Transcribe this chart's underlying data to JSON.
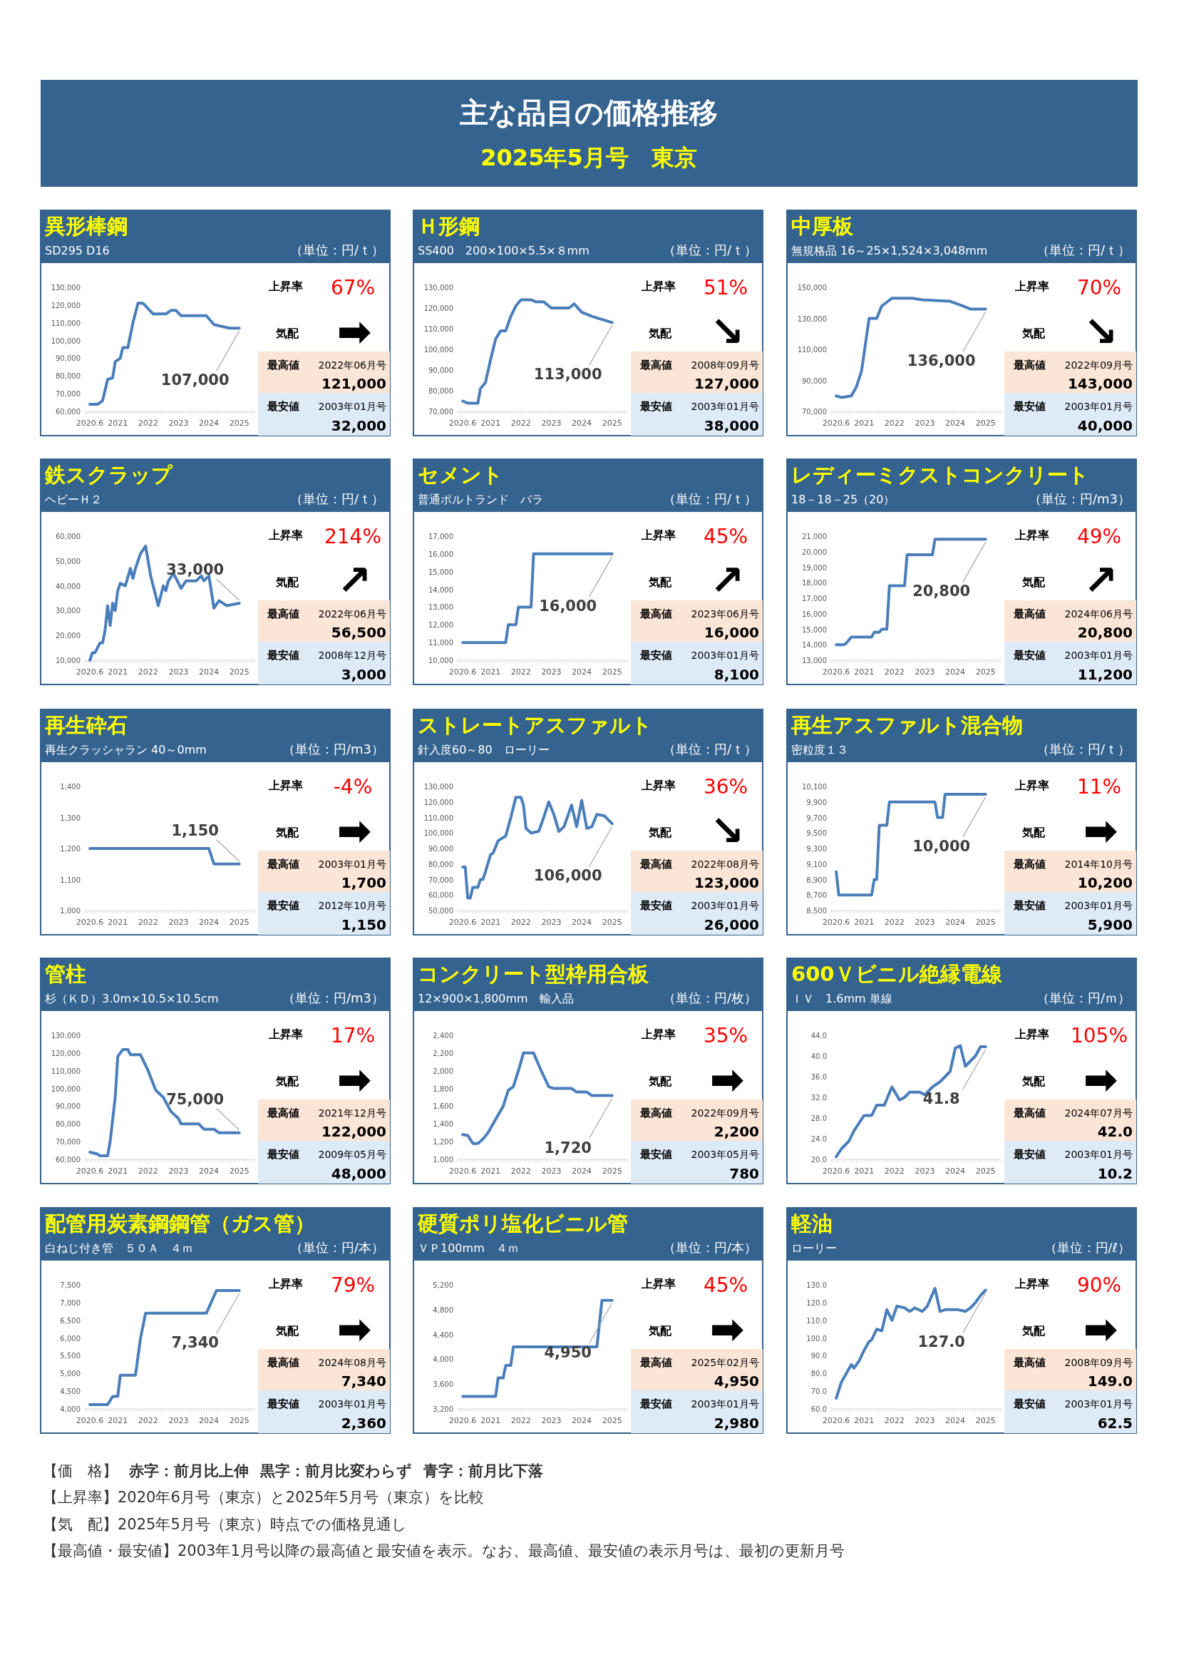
{
  "chart_data": [
    {
      "type": "other",
      "title": "主な品目の価格推移",
      "subtitle": "2025年5月号　東京"
    },
    {
      "type": "line",
      "title": "異形棒鋼",
      "subtitle": "SD295 D16",
      "ylabel": "（単位：円/ｔ）",
      "xlim": [
        "2020-04",
        "2025-11"
      ],
      "xticks": [
        {
          "value": "2020-06",
          "label": "2020.6"
        },
        {
          "value": "2021-05",
          "label": "2021"
        },
        {
          "value": "2022-05",
          "label": "2022"
        },
        {
          "value": "2023-05",
          "label": "2023"
        },
        {
          "value": "2024-05",
          "label": "2024"
        },
        {
          "value": "2025-05",
          "label": "2025"
        }
      ],
      "ylim": [
        60000,
        130000
      ],
      "yticks": [
        {
          "value": 60000,
          "label": "60,000"
        },
        {
          "value": 70000,
          "label": "70,000"
        },
        {
          "value": 80000,
          "label": "80,000"
        },
        {
          "value": 90000,
          "label": "90,000"
        },
        {
          "value": 100000,
          "label": "100,000"
        },
        {
          "value": 110000,
          "label": "110,000"
        },
        {
          "value": 120000,
          "label": "120,000"
        },
        {
          "value": 130000,
          "label": "130,000"
        }
      ],
      "series": [
        {
          "color": "#4a7ebb",
          "x": [
            "2020-06",
            "2020-09",
            "2020-11",
            "2021-01",
            "2021-03",
            "2021-04",
            "2021-06",
            "2021-07",
            "2021-09",
            "2021-11",
            "2022-01",
            "2022-03",
            "2022-05",
            "2022-07",
            "2022-09",
            "2022-12",
            "2023-02",
            "2023-04",
            "2023-06",
            "2024-04",
            "2024-07",
            "2024-10",
            "2025-01",
            "2025-05"
          ],
          "values": [
            64000,
            64000,
            66000,
            78000,
            79000,
            88000,
            90000,
            96000,
            96000,
            110000,
            121000,
            121000,
            118000,
            115000,
            115000,
            115000,
            117000,
            117000,
            114000,
            114000,
            109000,
            108000,
            107000,
            107000
          ]
        }
      ],
      "annotations": [
        {
          "text": "107,000",
          "x": "2025-05",
          "y": 107000
        },
        "上昇率",
        "67%",
        "気配",
        "➡",
        "最高値",
        "2022年06月号",
        "121,000",
        "最安値",
        "2003年01月号",
        "32,000"
      ]
    },
    {
      "type": "line",
      "title": "Ｈ形鋼",
      "subtitle": "SS400　200×100×5.5×８mm",
      "ylabel": "（単位：円/ｔ）",
      "xlim": [
        "2020-04",
        "2025-11"
      ],
      "xticks": [
        {
          "value": "2020-06",
          "label": "2020.6"
        },
        {
          "value": "2021-05",
          "label": "2021"
        },
        {
          "value": "2022-05",
          "label": "2022"
        },
        {
          "value": "2023-05",
          "label": "2023"
        },
        {
          "value": "2024-05",
          "label": "2024"
        },
        {
          "value": "2025-05",
          "label": "2025"
        }
      ],
      "ylim": [
        70000,
        130000
      ],
      "yticks": [
        {
          "value": 70000,
          "label": "70,000"
        },
        {
          "value": 80000,
          "label": "80,000"
        },
        {
          "value": 90000,
          "label": "90,000"
        },
        {
          "value": 100000,
          "label": "100,000"
        },
        {
          "value": 110000,
          "label": "110,000"
        },
        {
          "value": 120000,
          "label": "120,000"
        },
        {
          "value": 130000,
          "label": "130,000"
        }
      ],
      "series": [
        {
          "color": "#4a7ebb",
          "x": [
            "2020-06",
            "2020-08",
            "2020-12",
            "2021-01",
            "2021-03",
            "2021-05",
            "2021-07",
            "2021-09",
            "2021-11",
            "2022-01",
            "2022-03",
            "2022-05",
            "2022-09",
            "2022-11",
            "2023-02",
            "2023-05",
            "2023-12",
            "2024-02",
            "2024-05",
            "2024-09",
            "2025-05"
          ],
          "values": [
            75000,
            74000,
            74000,
            81000,
            84000,
            95000,
            105000,
            109000,
            109000,
            116000,
            121000,
            124000,
            124000,
            123000,
            123000,
            120000,
            120000,
            122000,
            118000,
            116000,
            113000
          ]
        }
      ],
      "annotations": [
        {
          "text": "113,000",
          "x": "2025-05",
          "y": 113000
        },
        "上昇率",
        "51%",
        "気配",
        "↘",
        "最高値",
        "2008年09月号",
        "127,000",
        "最安値",
        "2003年01月号",
        "38,000"
      ]
    },
    {
      "type": "line",
      "title": "中厚板",
      "subtitle": "無規格品 16～25×1,524×3,048mm",
      "ylabel": "（単位：円/ｔ）",
      "xlim": [
        "2020-04",
        "2025-11"
      ],
      "xticks": [
        {
          "value": "2020-06",
          "label": "2020.6"
        },
        {
          "value": "2021-05",
          "label": "2021"
        },
        {
          "value": "2022-05",
          "label": "2022"
        },
        {
          "value": "2023-05",
          "label": "2023"
        },
        {
          "value": "2024-05",
          "label": "2024"
        },
        {
          "value": "2025-05",
          "label": "2025"
        }
      ],
      "ylim": [
        70000,
        150000
      ],
      "yticks": [
        {
          "value": 70000,
          "label": "70,000"
        },
        {
          "value": 90000,
          "label": "90,000"
        },
        {
          "value": 110000,
          "label": "110,000"
        },
        {
          "value": 130000,
          "label": "130,000"
        },
        {
          "value": 150000,
          "label": "150,000"
        }
      ],
      "series": [
        {
          "color": "#4a7ebb",
          "x": [
            "2020-06",
            "2020-08",
            "2020-12",
            "2021-02",
            "2021-04",
            "2021-07",
            "2021-10",
            "2021-12",
            "2022-04",
            "2022-12",
            "2023-04",
            "2024-03",
            "2024-08",
            "2024-11",
            "2025-05"
          ],
          "values": [
            80000,
            79000,
            80000,
            86000,
            96000,
            130000,
            130000,
            138000,
            143000,
            143000,
            142000,
            141000,
            138000,
            136000,
            136000
          ]
        }
      ],
      "annotations": [
        {
          "text": "136,000",
          "x": "2025-05",
          "y": 136000
        },
        "上昇率",
        "70%",
        "気配",
        "↘",
        "最高値",
        "2022年09月号",
        "143,000",
        "最安値",
        "2003年01月号",
        "40,000"
      ]
    },
    {
      "type": "line",
      "title": "鉄スクラップ",
      "subtitle": "ヘビーＨ２",
      "ylabel": "（単位：円/ｔ）",
      "xlim": [
        "2020-04",
        "2025-11"
      ],
      "xticks": [
        {
          "value": "2020-06",
          "label": "2020.6"
        },
        {
          "value": "2021-05",
          "label": "2021"
        },
        {
          "value": "2022-05",
          "label": "2022"
        },
        {
          "value": "2023-05",
          "label": "2023"
        },
        {
          "value": "2024-05",
          "label": "2024"
        },
        {
          "value": "2025-05",
          "label": "2025"
        }
      ],
      "ylim": [
        10000,
        60000
      ],
      "yticks": [
        {
          "value": 10000,
          "label": "10,000"
        },
        {
          "value": 20000,
          "label": "20,000"
        },
        {
          "value": 30000,
          "label": "30,000"
        },
        {
          "value": 40000,
          "label": "40,000"
        },
        {
          "value": 50000,
          "label": "50,000"
        },
        {
          "value": 60000,
          "label": "60,000"
        }
      ],
      "series": [
        {
          "color": "#4a7ebb",
          "x": [
            "2020-06",
            "2020-07",
            "2020-08",
            "2020-10",
            "2020-11",
            "2020-12",
            "2021-01",
            "2021-02",
            "2021-03",
            "2021-04",
            "2021-05",
            "2021-06",
            "2021-08",
            "2021-10",
            "2021-11",
            "2021-12",
            "2022-02",
            "2022-04",
            "2022-06",
            "2022-09",
            "2022-11",
            "2022-12",
            "2023-01",
            "2023-03",
            "2023-06",
            "2023-08",
            "2023-12",
            "2024-02",
            "2024-03",
            "2024-05",
            "2024-07",
            "2024-09",
            "2024-12",
            "2025-05"
          ],
          "values": [
            10000,
            13000,
            13000,
            17000,
            17000,
            22000,
            32000,
            24000,
            33000,
            30000,
            38000,
            41000,
            40000,
            47000,
            43000,
            47000,
            53000,
            56000,
            44000,
            32000,
            40000,
            38000,
            42000,
            45000,
            39000,
            42000,
            42000,
            44000,
            42000,
            44000,
            31000,
            34000,
            32000,
            33000
          ]
        }
      ],
      "annotations": [
        {
          "text": "33,000",
          "x": "2025-05",
          "y": 33000
        },
        "上昇率",
        "214%",
        "気配",
        "↗",
        "最高値",
        "2022年06月号",
        "56,500",
        "最安値",
        "2008年12月号",
        "3,000"
      ]
    },
    {
      "type": "line",
      "title": "セメント",
      "subtitle": "普通ポルトランド　バラ",
      "ylabel": "（単位：円/ｔ）",
      "xlim": [
        "2020-04",
        "2025-11"
      ],
      "xticks": [
        {
          "value": "2020-06",
          "label": "2020.6"
        },
        {
          "value": "2021-05",
          "label": "2021"
        },
        {
          "value": "2022-05",
          "label": "2022"
        },
        {
          "value": "2023-05",
          "label": "2023"
        },
        {
          "value": "2024-05",
          "label": "2024"
        },
        {
          "value": "2025-05",
          "label": "2025"
        }
      ],
      "ylim": [
        10000,
        17000
      ],
      "yticks": [
        {
          "value": 10000,
          "label": "10,000"
        },
        {
          "value": 11000,
          "label": "11,000"
        },
        {
          "value": 12000,
          "label": "12,000"
        },
        {
          "value": 13000,
          "label": "13,000"
        },
        {
          "value": 14000,
          "label": "14,000"
        },
        {
          "value": 15000,
          "label": "15,000"
        },
        {
          "value": 16000,
          "label": "16,000"
        },
        {
          "value": 17000,
          "label": "17,000"
        }
      ],
      "series": [
        {
          "color": "#4a7ebb",
          "x": [
            "2020-06",
            "2021-11",
            "2021-12",
            "2022-03",
            "2022-04",
            "2022-09",
            "2022-10",
            "2025-05"
          ],
          "values": [
            11000,
            11000,
            12000,
            12000,
            13000,
            13000,
            16000,
            16000
          ]
        }
      ],
      "annotations": [
        {
          "text": "16,000",
          "x": "2025-05",
          "y": 16000
        },
        "上昇率",
        "45%",
        "気配",
        "↗",
        "最高値",
        "2023年06月号",
        "16,000",
        "最安値",
        "2003年01月号",
        "8,100"
      ]
    },
    {
      "type": "line",
      "title": "レディーミクストコンクリート",
      "subtitle": "18－18－25（20）",
      "ylabel": "（単位：円/m3）",
      "xlim": [
        "2020-04",
        "2025-11"
      ],
      "xticks": [
        {
          "value": "2020-06",
          "label": "2020.6"
        },
        {
          "value": "2021-05",
          "label": "2021"
        },
        {
          "value": "2022-05",
          "label": "2022"
        },
        {
          "value": "2023-05",
          "label": "2023"
        },
        {
          "value": "2024-05",
          "label": "2024"
        },
        {
          "value": "2025-05",
          "label": "2025"
        }
      ],
      "ylim": [
        13000,
        21000
      ],
      "yticks": [
        {
          "value": 13000,
          "label": "13,000"
        },
        {
          "value": 14000,
          "label": "14,000"
        },
        {
          "value": 15000,
          "label": "15,000"
        },
        {
          "value": 16000,
          "label": "16,000"
        },
        {
          "value": 17000,
          "label": "17,000"
        },
        {
          "value": 18000,
          "label": "18,000"
        },
        {
          "value": 19000,
          "label": "19,000"
        },
        {
          "value": 20000,
          "label": "20,000"
        },
        {
          "value": 21000,
          "label": "21,000"
        }
      ],
      "series": [
        {
          "color": "#4a7ebb",
          "x": [
            "2020-06",
            "2020-09",
            "2020-10",
            "2020-12",
            "2021-08",
            "2021-09",
            "2021-11",
            "2021-12",
            "2022-02",
            "2022-03",
            "2022-09",
            "2022-10",
            "2023-08",
            "2023-09",
            "2025-05"
          ],
          "values": [
            14000,
            14000,
            14100,
            14500,
            14500,
            14800,
            14800,
            15000,
            15000,
            17800,
            17800,
            19800,
            19800,
            20800,
            20800
          ]
        }
      ],
      "annotations": [
        {
          "text": "20,800",
          "x": "2025-05",
          "y": 20800
        },
        "上昇率",
        "49%",
        "気配",
        "↗",
        "最高値",
        "2024年06月号",
        "20,800",
        "最安値",
        "2003年01月号",
        "11,200"
      ]
    },
    {
      "type": "line",
      "title": "再生砕石",
      "subtitle": "再生クラッシャラン 40～0mm",
      "ylabel": "（単位：円/m3）",
      "xlim": [
        "2020-04",
        "2025-11"
      ],
      "xticks": [
        {
          "value": "2020-06",
          "label": "2020.6"
        },
        {
          "value": "2021-05",
          "label": "2021"
        },
        {
          "value": "2022-05",
          "label": "2022"
        },
        {
          "value": "2023-05",
          "label": "2023"
        },
        {
          "value": "2024-05",
          "label": "2024"
        },
        {
          "value": "2025-05",
          "label": "2025"
        }
      ],
      "ylim": [
        1000,
        1400
      ],
      "yticks": [
        {
          "value": 1000,
          "label": "1,000"
        },
        {
          "value": 1100,
          "label": "1,100"
        },
        {
          "value": 1200,
          "label": "1,200"
        },
        {
          "value": 1300,
          "label": "1,300"
        },
        {
          "value": 1400,
          "label": "1,400"
        }
      ],
      "series": [
        {
          "color": "#4a7ebb",
          "x": [
            "2020-06",
            "2024-05",
            "2024-07",
            "2025-05"
          ],
          "values": [
            1200,
            1200,
            1150,
            1150
          ]
        }
      ],
      "annotations": [
        {
          "text": "1,150",
          "x": "2025-05",
          "y": 1150
        },
        "上昇率",
        "-4%",
        "気配",
        "➡",
        "最高値",
        "2003年01月号",
        "1,700",
        "最安値",
        "2012年10月号",
        "1,150"
      ]
    },
    {
      "type": "line",
      "title": "ストレートアスファルト",
      "subtitle": "針入度60～80　ローリー",
      "ylabel": "（単位：円/ｔ）",
      "xlim": [
        "2020-04",
        "2025-11"
      ],
      "xticks": [
        {
          "value": "2020-06",
          "label": "2020.6"
        },
        {
          "value": "2021-05",
          "label": "2021"
        },
        {
          "value": "2022-05",
          "label": "2022"
        },
        {
          "value": "2023-05",
          "label": "2023"
        },
        {
          "value": "2024-05",
          "label": "2024"
        },
        {
          "value": "2025-05",
          "label": "2025"
        }
      ],
      "ylim": [
        50000,
        130000
      ],
      "yticks": [
        {
          "value": 50000,
          "label": "50,000"
        },
        {
          "value": 60000,
          "label": "60,000"
        },
        {
          "value": 70000,
          "label": "70,000"
        },
        {
          "value": 80000,
          "label": "80,000"
        },
        {
          "value": 90000,
          "label": "90,000"
        },
        {
          "value": 100000,
          "label": "100,000"
        },
        {
          "value": 110000,
          "label": "110,000"
        },
        {
          "value": 120000,
          "label": "120,000"
        },
        {
          "value": 130000,
          "label": "130,000"
        }
      ],
      "series": [
        {
          "color": "#4a7ebb",
          "x": [
            "2020-06",
            "2020-07",
            "2020-08",
            "2020-09",
            "2020-10",
            "2020-12",
            "2021-01",
            "2021-02",
            "2021-03",
            "2021-05",
            "2021-06",
            "2021-08",
            "2021-10",
            "2021-11",
            "2022-01",
            "2022-03",
            "2022-05",
            "2022-06",
            "2022-07",
            "2022-09",
            "2022-12",
            "2023-02",
            "2023-04",
            "2023-06",
            "2023-08",
            "2023-10",
            "2024-01",
            "2024-03",
            "2024-05",
            "2024-07",
            "2024-09",
            "2024-11",
            "2025-02",
            "2025-05"
          ],
          "values": [
            78000,
            78000,
            58000,
            58000,
            65000,
            65000,
            70000,
            70000,
            75000,
            86000,
            87000,
            95000,
            97000,
            98000,
            110000,
            123000,
            123000,
            118000,
            103000,
            100000,
            101000,
            110000,
            120000,
            112000,
            101000,
            104000,
            118000,
            104000,
            121000,
            103000,
            104000,
            112000,
            111000,
            106000
          ]
        }
      ],
      "annotations": [
        {
          "text": "106,000",
          "x": "2025-05",
          "y": 106000
        },
        "上昇率",
        "36%",
        "気配",
        "↘",
        "最高値",
        "2022年08月号",
        "123,000",
        "最安値",
        "2003年01月号",
        "26,000"
      ]
    },
    {
      "type": "line",
      "title": "再生アスファルト混合物",
      "subtitle": "密粒度１３",
      "ylabel": "（単位：円/ｔ）",
      "xlim": [
        "2020-04",
        "2025-11"
      ],
      "xticks": [
        {
          "value": "2020-06",
          "label": "2020.6"
        },
        {
          "value": "2021-05",
          "label": "2021"
        },
        {
          "value": "2022-05",
          "label": "2022"
        },
        {
          "value": "2023-05",
          "label": "2023"
        },
        {
          "value": "2024-05",
          "label": "2024"
        },
        {
          "value": "2025-05",
          "label": "2025"
        }
      ],
      "ylim": [
        8500,
        10100
      ],
      "yticks": [
        {
          "value": 8500,
          "label": "8,500"
        },
        {
          "value": 8700,
          "label": "8,700"
        },
        {
          "value": 8900,
          "label": "8,900"
        },
        {
          "value": 9100,
          "label": "9,100"
        },
        {
          "value": 9300,
          "label": "9,300"
        },
        {
          "value": 9500,
          "label": "9,500"
        },
        {
          "value": 9700,
          "label": "9,700"
        },
        {
          "value": 9900,
          "label": "9,900"
        },
        {
          "value": 10100,
          "label": "10,100"
        }
      ],
      "series": [
        {
          "color": "#4a7ebb",
          "x": [
            "2020-06",
            "2020-07",
            "2021-08",
            "2021-09",
            "2021-10",
            "2021-11",
            "2022-02",
            "2022-03",
            "2023-09",
            "2023-10",
            "2023-12",
            "2024-01",
            "2025-05"
          ],
          "values": [
            9000,
            8700,
            8700,
            8900,
            8900,
            9600,
            9600,
            9900,
            9900,
            9700,
            9700,
            10000,
            10000
          ]
        }
      ],
      "annotations": [
        {
          "text": "10,000",
          "x": "2025-05",
          "y": 10000
        },
        "上昇率",
        "11%",
        "気配",
        "➡",
        "最高値",
        "2014年10月号",
        "10,200",
        "最安値",
        "2003年01月号",
        "5,900"
      ]
    },
    {
      "type": "line",
      "title": "管柱",
      "subtitle": "杉（ＫＤ）3.0m×10.5×10.5cm",
      "ylabel": "（単位：円/m3）",
      "xlim": [
        "2020-04",
        "2025-11"
      ],
      "xticks": [
        {
          "value": "2020-06",
          "label": "2020.6"
        },
        {
          "value": "2021-05",
          "label": "2021"
        },
        {
          "value": "2022-05",
          "label": "2022"
        },
        {
          "value": "2023-05",
          "label": "2023"
        },
        {
          "value": "2024-05",
          "label": "2024"
        },
        {
          "value": "2025-05",
          "label": "2025"
        }
      ],
      "ylim": [
        60000,
        130000
      ],
      "yticks": [
        {
          "value": 60000,
          "label": "60,000"
        },
        {
          "value": 70000,
          "label": "70,000"
        },
        {
          "value": 80000,
          "label": "80,000"
        },
        {
          "value": 90000,
          "label": "90,000"
        },
        {
          "value": 100000,
          "label": "100,000"
        },
        {
          "value": 110000,
          "label": "110,000"
        },
        {
          "value": 120000,
          "label": "120,000"
        },
        {
          "value": 130000,
          "label": "130,000"
        }
      ],
      "series": [
        {
          "color": "#4a7ebb",
          "x": [
            "2020-06",
            "2020-09",
            "2020-10",
            "2021-01",
            "2021-02",
            "2021-04",
            "2021-05",
            "2021-07",
            "2021-09",
            "2021-10",
            "2022-02",
            "2022-05",
            "2022-08",
            "2022-11",
            "2023-02",
            "2023-05",
            "2023-06",
            "2024-01",
            "2024-03",
            "2024-07",
            "2024-09",
            "2025-05"
          ],
          "values": [
            64000,
            63000,
            62000,
            62000,
            70000,
            95000,
            118000,
            122000,
            122000,
            119000,
            119000,
            110000,
            99000,
            95000,
            87000,
            83000,
            80000,
            80000,
            77000,
            77000,
            75000,
            75000
          ]
        }
      ],
      "annotations": [
        {
          "text": "75,000",
          "x": "2025-05",
          "y": 75000
        },
        "上昇率",
        "17%",
        "気配",
        "➡",
        "最高値",
        "2021年12月号",
        "122,000",
        "最安値",
        "2009年05月号",
        "48,000"
      ]
    },
    {
      "type": "line",
      "title": "コンクリート型枠用合板",
      "subtitle": "12×900×1,800mm　輸入品",
      "ylabel": "（単位：円/枚）",
      "xlim": [
        "2020-04",
        "2025-11"
      ],
      "xticks": [
        {
          "value": "2020-06",
          "label": "2020.6"
        },
        {
          "value": "2021-05",
          "label": "2021"
        },
        {
          "value": "2022-05",
          "label": "2022"
        },
        {
          "value": "2023-05",
          "label": "2023"
        },
        {
          "value": "2024-05",
          "label": "2024"
        },
        {
          "value": "2025-05",
          "label": "2025"
        }
      ],
      "ylim": [
        1000,
        2400
      ],
      "yticks": [
        {
          "value": 1000,
          "label": "1,000"
        },
        {
          "value": 1200,
          "label": "1,200"
        },
        {
          "value": 1400,
          "label": "1,400"
        },
        {
          "value": 1600,
          "label": "1,600"
        },
        {
          "value": 1800,
          "label": "1,800"
        },
        {
          "value": 2000,
          "label": "2,000"
        },
        {
          "value": 2200,
          "label": "2,200"
        },
        {
          "value": 2400,
          "label": "2,400"
        }
      ],
      "series": [
        {
          "color": "#4a7ebb",
          "x": [
            "2020-06",
            "2020-08",
            "2020-10",
            "2020-12",
            "2021-02",
            "2021-04",
            "2021-07",
            "2021-10",
            "2021-12",
            "2022-02",
            "2022-04",
            "2022-06",
            "2022-10",
            "2023-01",
            "2023-04",
            "2023-06",
            "2024-01",
            "2024-03",
            "2024-07",
            "2024-09",
            "2025-05"
          ],
          "values": [
            1280,
            1270,
            1180,
            1180,
            1230,
            1300,
            1450,
            1600,
            1780,
            1820,
            2000,
            2200,
            2200,
            2000,
            1820,
            1800,
            1800,
            1760,
            1760,
            1720,
            1720
          ]
        }
      ],
      "annotations": [
        {
          "text": "1,720",
          "x": "2025-05",
          "y": 1720
        },
        "上昇率",
        "35%",
        "気配",
        "➡",
        "最高値",
        "2022年09月号",
        "2,200",
        "最安値",
        "2003年05月号",
        "780"
      ]
    },
    {
      "type": "line",
      "title": "600Ｖビニル絶縁電線",
      "subtitle": "ＩＶ　1.6mm 単線",
      "ylabel": "（単位：円/ｍ）",
      "xlim": [
        "2020-04",
        "2025-11"
      ],
      "xticks": [
        {
          "value": "2020-06",
          "label": "2020.6"
        },
        {
          "value": "2021-05",
          "label": "2021"
        },
        {
          "value": "2022-05",
          "label": "2022"
        },
        {
          "value": "2023-05",
          "label": "2023"
        },
        {
          "value": "2024-05",
          "label": "2024"
        },
        {
          "value": "2025-05",
          "label": "2025"
        }
      ],
      "ylim": [
        20,
        44
      ],
      "yticks": [
        {
          "value": 20,
          "label": "20.0"
        },
        {
          "value": 24,
          "label": "24.0"
        },
        {
          "value": 28,
          "label": "28.0"
        },
        {
          "value": 32,
          "label": "32.0"
        },
        {
          "value": 36,
          "label": "36.0"
        },
        {
          "value": 40,
          "label": "40.0"
        },
        {
          "value": 44,
          "label": "44.0"
        }
      ],
      "series": [
        {
          "color": "#4a7ebb",
          "x": [
            "2020-06",
            "2020-08",
            "2020-11",
            "2021-01",
            "2021-03",
            "2021-05",
            "2021-08",
            "2021-10",
            "2022-01",
            "2022-04",
            "2022-07",
            "2022-09",
            "2022-11",
            "2023-03",
            "2023-05",
            "2023-08",
            "2023-11",
            "2024-03",
            "2024-05",
            "2024-07",
            "2024-09",
            "2024-11",
            "2025-01",
            "2025-03",
            "2025-05"
          ],
          "values": [
            20.5,
            22,
            23.5,
            25.5,
            27,
            28.5,
            28.5,
            30.5,
            30.5,
            34,
            31.5,
            32,
            33,
            33,
            32.5,
            34,
            35,
            37,
            41.5,
            42,
            38,
            39,
            40,
            41.8,
            41.8
          ]
        }
      ],
      "annotations": [
        {
          "text": "41.8",
          "x": "2025-05",
          "y": 41.8
        },
        "上昇率",
        "105%",
        "気配",
        "➡",
        "最高値",
        "2024年07月号",
        "42.0",
        "最安値",
        "2003年01月号",
        "10.2"
      ]
    },
    {
      "type": "line",
      "title": "配管用炭素鋼鋼管（ガス管）",
      "subtitle": "白ねじ付き管　５０Ａ　４ｍ",
      "ylabel": "（単位：円/本）",
      "xlim": [
        "2020-04",
        "2025-11"
      ],
      "xticks": [
        {
          "value": "2020-06",
          "label": "2020.6"
        },
        {
          "value": "2021-05",
          "label": "2021"
        },
        {
          "value": "2022-05",
          "label": "2022"
        },
        {
          "value": "2023-05",
          "label": "2023"
        },
        {
          "value": "2024-05",
          "label": "2024"
        },
        {
          "value": "2025-05",
          "label": "2025"
        }
      ],
      "ylim": [
        4000,
        7500
      ],
      "yticks": [
        {
          "value": 4000,
          "label": "4,000"
        },
        {
          "value": 4500,
          "label": "4,500"
        },
        {
          "value": 5000,
          "label": "5,000"
        },
        {
          "value": 5500,
          "label": "5,500"
        },
        {
          "value": 6000,
          "label": "6,000"
        },
        {
          "value": 6500,
          "label": "6,500"
        },
        {
          "value": 7000,
          "label": "7,000"
        },
        {
          "value": 7500,
          "label": "7,500"
        }
      ],
      "series": [
        {
          "color": "#4a7ebb",
          "x": [
            "2020-06",
            "2021-01",
            "2021-03",
            "2021-05",
            "2021-06",
            "2021-12",
            "2022-02",
            "2022-04",
            "2024-04",
            "2024-08",
            "2025-05"
          ],
          "values": [
            4120,
            4120,
            4350,
            4350,
            4950,
            4950,
            6000,
            6700,
            6700,
            7340,
            7340
          ]
        }
      ],
      "annotations": [
        {
          "text": "7,340",
          "x": "2025-05",
          "y": 7340
        },
        "上昇率",
        "79%",
        "気配",
        "➡",
        "最高値",
        "2024年08月号",
        "7,340",
        "最安値",
        "2003年01月号",
        "2,360"
      ]
    },
    {
      "type": "line",
      "title": "硬質ポリ塩化ビニル管",
      "subtitle": "ＶＰ100mm　４ｍ",
      "ylabel": "（単位：円/本）",
      "xlim": [
        "2020-04",
        "2025-11"
      ],
      "xticks": [
        {
          "value": "2020-06",
          "label": "2020.6"
        },
        {
          "value": "2021-05",
          "label": "2021"
        },
        {
          "value": "2022-05",
          "label": "2022"
        },
        {
          "value": "2023-05",
          "label": "2023"
        },
        {
          "value": "2024-05",
          "label": "2024"
        },
        {
          "value": "2025-05",
          "label": "2025"
        }
      ],
      "ylim": [
        3200,
        5200
      ],
      "yticks": [
        {
          "value": 3200,
          "label": "3,200"
        },
        {
          "value": 3600,
          "label": "3,600"
        },
        {
          "value": 4000,
          "label": "4,000"
        },
        {
          "value": 4400,
          "label": "4,400"
        },
        {
          "value": 4800,
          "label": "4,800"
        },
        {
          "value": 5200,
          "label": "5,200"
        }
      ],
      "series": [
        {
          "color": "#4a7ebb",
          "x": [
            "2020-06",
            "2021-07",
            "2021-08",
            "2021-10",
            "2021-11",
            "2022-01",
            "2022-02",
            "2024-11",
            "2025-01",
            "2025-05"
          ],
          "values": [
            3400,
            3400,
            3700,
            3700,
            3900,
            3900,
            4200,
            4200,
            4950,
            4950
          ]
        }
      ],
      "annotations": [
        {
          "text": "4,950",
          "x": "2025-05",
          "y": 4950
        },
        "上昇率",
        "45%",
        "気配",
        "➡",
        "最高値",
        "2025年02月号",
        "4,950",
        "最安値",
        "2003年01月号",
        "2,980"
      ]
    },
    {
      "type": "line",
      "title": "軽油",
      "subtitle": "ローリー",
      "ylabel": "（単位：円/ℓ）",
      "xlim": [
        "2020-04",
        "2025-11"
      ],
      "xticks": [
        {
          "value": "2020-06",
          "label": "2020.6"
        },
        {
          "value": "2021-05",
          "label": "2021"
        },
        {
          "value": "2022-05",
          "label": "2022"
        },
        {
          "value": "2023-05",
          "label": "2023"
        },
        {
          "value": "2024-05",
          "label": "2024"
        },
        {
          "value": "2025-05",
          "label": "2025"
        }
      ],
      "ylim": [
        60,
        130
      ],
      "yticks": [
        {
          "value": 60,
          "label": "60.0"
        },
        {
          "value": 70,
          "label": "70.0"
        },
        {
          "value": 80,
          "label": "80.0"
        },
        {
          "value": 90,
          "label": "90.0"
        },
        {
          "value": 100,
          "label": "100.0"
        },
        {
          "value": 110,
          "label": "110.0"
        },
        {
          "value": 120,
          "label": "120.0"
        },
        {
          "value": 130,
          "label": "130.0"
        }
      ],
      "series": [
        {
          "color": "#4a7ebb",
          "x": [
            "2020-06",
            "2020-08",
            "2020-10",
            "2020-12",
            "2021-01",
            "2021-03",
            "2021-05",
            "2021-07",
            "2021-08",
            "2021-10",
            "2021-12",
            "2022-02",
            "2022-04",
            "2022-06",
            "2022-09",
            "2022-11",
            "2023-01",
            "2023-04",
            "2023-06",
            "2023-09",
            "2023-11",
            "2024-01",
            "2024-06",
            "2024-09",
            "2024-11",
            "2025-01",
            "2025-03",
            "2025-05"
          ],
          "values": [
            66,
            75,
            80,
            85,
            83,
            87,
            93,
            98,
            99,
            105,
            104,
            116,
            110,
            118,
            117,
            115,
            117,
            115,
            118,
            128,
            115,
            116,
            116,
            115,
            117,
            120,
            124,
            127
          ]
        }
      ],
      "annotations": [
        {
          "text": "127.0",
          "x": "2025-05",
          "y": 127
        },
        "上昇率",
        "90%",
        "気配",
        "➡",
        "最高値",
        "2008年09月号",
        "149.0",
        "最安値",
        "2003年01月号",
        "62.5"
      ]
    },
    {
      "type": "other",
      "annotations": [
        "【価　格】",
        "赤字：前月比上伸",
        "黒字：前月比変わらず",
        "青字：前月比下落"
      ]
    },
    {
      "type": "other",
      "annotations": [
        "【上昇率】2020年6月号（東京）と2025年5月号（東京）を比較"
      ]
    },
    {
      "type": "other",
      "annotations": [
        "【気　配】2025年5月号（東京）時点での価格見通し"
      ]
    },
    {
      "type": "other",
      "annotations": [
        "【最高値・最安値】2003年1月号以降の最高値と最安値を表示。なお、最高値、最安値の表示月号は、最初の更新月号"
      ]
    }
  ]
}
